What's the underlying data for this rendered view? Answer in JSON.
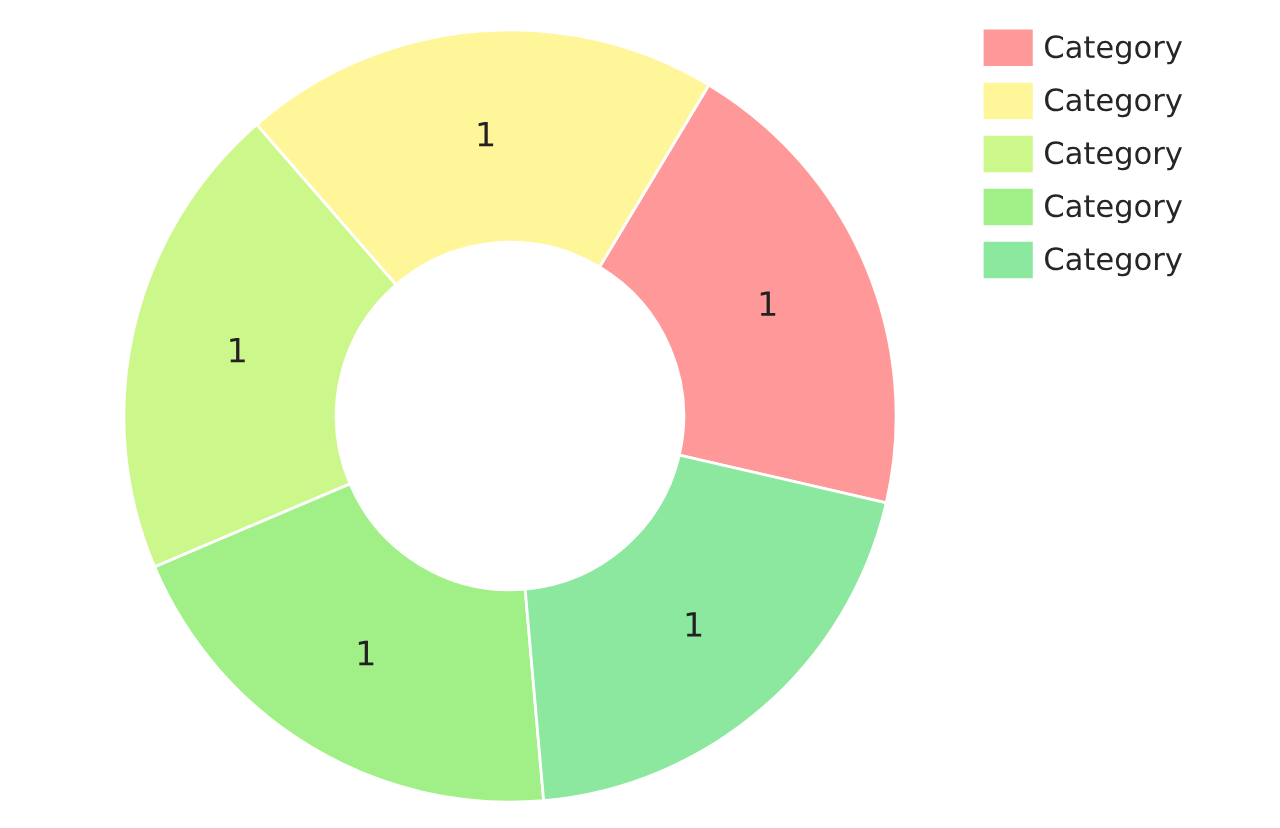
{
  "chart_data": {
    "type": "donut",
    "categories": [
      "Category",
      "Category",
      "Category",
      "Category",
      "Category"
    ],
    "values": [
      1,
      1,
      1,
      1,
      1
    ],
    "colors": [
      "#ff9999",
      "#fff599",
      "#ccf78a",
      "#a0ef87",
      "#8ce89f"
    ],
    "data_labels": true,
    "legend": "top right"
  }
}
